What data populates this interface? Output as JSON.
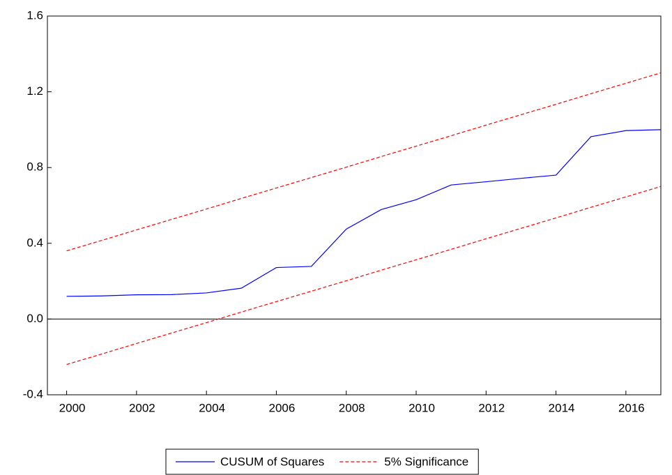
{
  "chart_data": {
    "type": "line",
    "x": [
      2000,
      2001,
      2002,
      2003,
      2004,
      2005,
      2006,
      2007,
      2008,
      2009,
      2010,
      2011,
      2012,
      2013,
      2014,
      2015,
      2016,
      2017
    ],
    "series": [
      {
        "name": "CUSUM of Squares",
        "color": "#0000ff",
        "dashed": false,
        "values": [
          0.12,
          0.122,
          0.128,
          0.129,
          0.138,
          0.163,
          0.272,
          0.278,
          0.475,
          0.578,
          0.63,
          0.708,
          0.725,
          0.743,
          0.76,
          0.963,
          0.995,
          1.0
        ]
      },
      {
        "name": "5% Significance",
        "color": "#ff0000",
        "dashed": true,
        "values": [
          0.36,
          0.415,
          0.471,
          0.526,
          0.581,
          0.637,
          0.692,
          0.747,
          0.802,
          0.858,
          0.913,
          0.968,
          1.024,
          1.079,
          1.134,
          1.19,
          1.245,
          1.3
        ]
      },
      {
        "color": "#ff0000",
        "dashed": true,
        "values": [
          -0.24,
          -0.185,
          -0.129,
          -0.074,
          -0.019,
          0.037,
          0.092,
          0.147,
          0.202,
          0.258,
          0.313,
          0.368,
          0.424,
          0.479,
          0.534,
          0.59,
          0.645,
          0.7
        ]
      }
    ],
    "xlim": [
      1999.45,
      2017
    ],
    "xticks": [
      2000,
      2002,
      2004,
      2006,
      2008,
      2010,
      2012,
      2014,
      2016
    ],
    "ylim": [
      -0.4,
      1.6
    ],
    "yticks": [
      -0.4,
      {
        "value": 0,
        "label": "0.0"
      },
      0.4,
      0.8,
      1.2,
      1.6
    ],
    "zero_line": true,
    "grid": false,
    "legend": "bottom"
  }
}
